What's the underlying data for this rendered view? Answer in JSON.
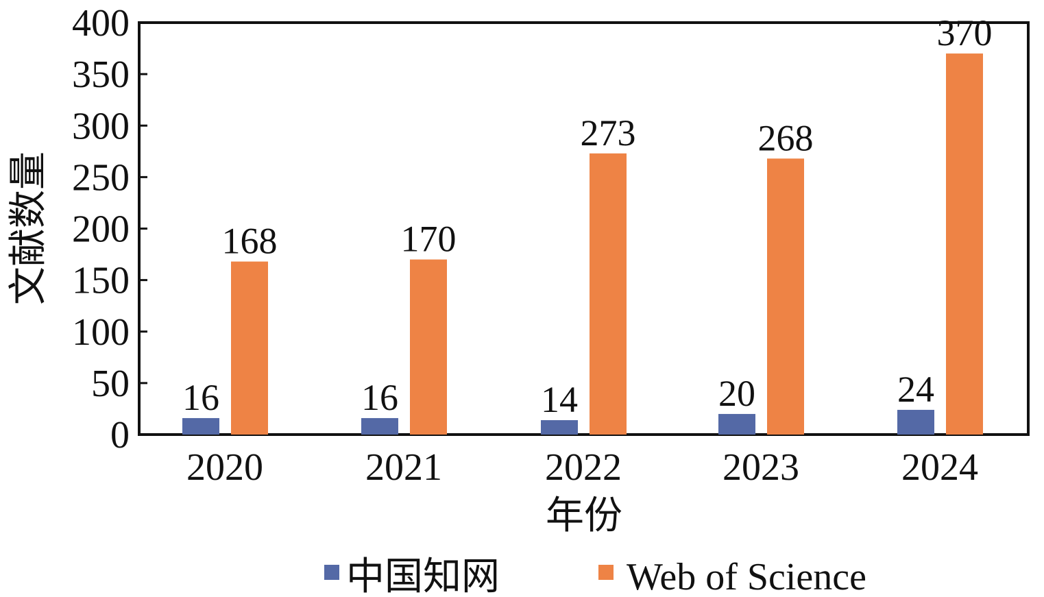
{
  "chart_data": {
    "type": "bar",
    "title": "",
    "xlabel": "年份",
    "ylabel": "文献数量",
    "categories": [
      "2020",
      "2021",
      "2022",
      "2023",
      "2024"
    ],
    "series": [
      {
        "name": "中国知网",
        "values": [
          16,
          16,
          14,
          20,
          24
        ],
        "color": "#5469A6"
      },
      {
        "name": "Web of Science",
        "values": [
          168,
          170,
          273,
          268,
          370
        ],
        "color": "#EE8345"
      }
    ],
    "ylim": [
      0,
      400
    ],
    "yticks": [
      0,
      50,
      100,
      150,
      200,
      250,
      300,
      350,
      400
    ],
    "grid": false,
    "legend_position": "bottom"
  }
}
